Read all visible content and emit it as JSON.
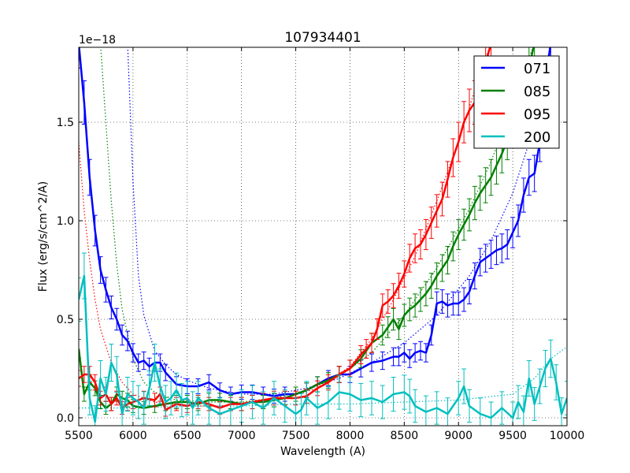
{
  "chart_data": {
    "type": "line",
    "title": "107934401",
    "xlabel": "Wavelength (A)",
    "ylabel": "Flux (erg/s/cm^2/A)",
    "offset_label": "1e−18",
    "xlim": [
      5500,
      10000
    ],
    "ylim": [
      -0.04,
      1.88
    ],
    "xticks": [
      5500,
      6000,
      6500,
      7000,
      7500,
      8000,
      8500,
      9000,
      9500,
      10000
    ],
    "xtick_labels": [
      "5500",
      "6000",
      "6500",
      "7000",
      "7500",
      "8000",
      "8500",
      "9000",
      "9500",
      "10000"
    ],
    "yticks": [
      0.0,
      0.5,
      1.0,
      1.5
    ],
    "ytick_labels": [
      "0.0",
      "0.5",
      "1.0",
      "1.5"
    ],
    "grid": true,
    "legend_position": "top-right",
    "series": [
      {
        "name": "071",
        "color": "#0000ff",
        "x": [
          5500,
          5550,
          5600,
          5650,
          5700,
          5750,
          5800,
          5850,
          5900,
          5950,
          6000,
          6050,
          6100,
          6150,
          6200,
          6250,
          6300,
          6400,
          6500,
          6600,
          6700,
          6800,
          6900,
          7000,
          7100,
          7200,
          7300,
          7400,
          7500,
          7600,
          7700,
          7800,
          7900,
          8000,
          8100,
          8200,
          8300,
          8400,
          8450,
          8500,
          8550,
          8600,
          8650,
          8700,
          8750,
          8800,
          8850,
          8900,
          8950,
          9000,
          9050,
          9100,
          9150,
          9200,
          9250,
          9300,
          9350,
          9400,
          9450,
          9500,
          9550,
          9600,
          9650,
          9700,
          9750,
          9800,
          9850
        ],
        "y": [
          1.9,
          1.6,
          1.22,
          0.95,
          0.75,
          0.65,
          0.56,
          0.5,
          0.42,
          0.39,
          0.33,
          0.28,
          0.29,
          0.26,
          0.28,
          0.28,
          0.23,
          0.17,
          0.16,
          0.16,
          0.18,
          0.14,
          0.12,
          0.13,
          0.13,
          0.12,
          0.11,
          0.12,
          0.12,
          0.14,
          0.17,
          0.2,
          0.22,
          0.22,
          0.25,
          0.28,
          0.29,
          0.31,
          0.31,
          0.33,
          0.3,
          0.33,
          0.34,
          0.33,
          0.42,
          0.58,
          0.59,
          0.57,
          0.58,
          0.58,
          0.6,
          0.64,
          0.72,
          0.79,
          0.81,
          0.83,
          0.85,
          0.86,
          0.88,
          0.94,
          1.0,
          1.13,
          1.22,
          1.24,
          1.4,
          1.7,
          1.9
        ]
      },
      {
        "name": "085",
        "color": "#008000",
        "x": [
          5500,
          5550,
          5600,
          5650,
          5700,
          5750,
          5800,
          5850,
          5900,
          5950,
          6000,
          6100,
          6200,
          6300,
          6400,
          6500,
          6600,
          6700,
          6800,
          6900,
          7000,
          7100,
          7200,
          7300,
          7400,
          7500,
          7600,
          7700,
          7800,
          7900,
          8000,
          8100,
          8200,
          8300,
          8350,
          8400,
          8450,
          8500,
          8550,
          8600,
          8650,
          8700,
          8750,
          8800,
          8850,
          8900,
          8950,
          9000,
          9050,
          9100,
          9150,
          9200,
          9250,
          9300,
          9350,
          9400,
          9450,
          9500,
          9550,
          9600,
          9650,
          9700
        ],
        "y": [
          0.35,
          0.12,
          0.18,
          0.15,
          0.08,
          0.05,
          0.07,
          0.12,
          0.1,
          0.09,
          0.06,
          0.05,
          0.06,
          0.07,
          0.08,
          0.08,
          0.07,
          0.09,
          0.09,
          0.08,
          0.07,
          0.08,
          0.08,
          0.09,
          0.1,
          0.12,
          0.14,
          0.17,
          0.19,
          0.22,
          0.25,
          0.3,
          0.38,
          0.42,
          0.46,
          0.5,
          0.45,
          0.52,
          0.55,
          0.57,
          0.6,
          0.63,
          0.67,
          0.72,
          0.76,
          0.8,
          0.87,
          0.93,
          0.98,
          1.03,
          1.09,
          1.14,
          1.18,
          1.22,
          1.28,
          1.34,
          1.41,
          1.5,
          1.58,
          1.66,
          1.78,
          1.9
        ]
      },
      {
        "name": "095",
        "color": "#ff0000",
        "x": [
          5500,
          5550,
          5600,
          5650,
          5700,
          5750,
          5800,
          5850,
          5900,
          5950,
          6000,
          6100,
          6200,
          6250,
          6300,
          6400,
          6500,
          6600,
          6700,
          6800,
          6900,
          7000,
          7100,
          7200,
          7300,
          7400,
          7500,
          7600,
          7700,
          7800,
          7900,
          8000,
          8100,
          8150,
          8200,
          8250,
          8300,
          8350,
          8400,
          8450,
          8500,
          8550,
          8600,
          8650,
          8700,
          8750,
          8800,
          8850,
          8900,
          8950,
          9000,
          9050,
          9100,
          9150,
          9200,
          9250,
          9300
        ],
        "y": [
          0.2,
          0.22,
          0.22,
          0.18,
          0.1,
          0.12,
          0.07,
          0.1,
          0.05,
          0.07,
          0.08,
          0.1,
          0.09,
          0.12,
          0.04,
          0.07,
          0.06,
          0.08,
          0.07,
          0.05,
          0.07,
          0.07,
          0.08,
          0.09,
          0.1,
          0.1,
          0.1,
          0.11,
          0.15,
          0.18,
          0.22,
          0.25,
          0.32,
          0.35,
          0.38,
          0.45,
          0.57,
          0.59,
          0.62,
          0.67,
          0.73,
          0.81,
          0.86,
          0.88,
          0.93,
          0.99,
          1.05,
          1.11,
          1.21,
          1.32,
          1.4,
          1.5,
          1.56,
          1.6,
          1.7,
          1.8,
          1.9
        ]
      },
      {
        "name": "200",
        "color": "#00bfbf",
        "x": [
          5500,
          5550,
          5600,
          5650,
          5700,
          5750,
          5800,
          5850,
          5900,
          5950,
          6000,
          6050,
          6100,
          6150,
          6200,
          6250,
          6300,
          6350,
          6400,
          6450,
          6500,
          6550,
          6600,
          6700,
          6800,
          6900,
          7000,
          7100,
          7200,
          7300,
          7400,
          7500,
          7550,
          7600,
          7700,
          7800,
          7900,
          8000,
          8100,
          8200,
          8300,
          8400,
          8500,
          8550,
          8600,
          8700,
          8800,
          8900,
          9000,
          9050,
          9100,
          9200,
          9300,
          9400,
          9500,
          9550,
          9600,
          9650,
          9700,
          9750,
          9800,
          9850,
          9900,
          9950,
          10000
        ],
        "y": [
          0.6,
          0.72,
          0.1,
          -0.02,
          0.2,
          0.12,
          0.28,
          0.22,
          0.02,
          0.12,
          0.1,
          0.08,
          0.05,
          0.15,
          0.28,
          0.16,
          0.08,
          0.1,
          0.14,
          0.09,
          0.1,
          0.05,
          0.1,
          0.05,
          0.02,
          0.04,
          0.06,
          0.08,
          0.05,
          0.1,
          0.06,
          0.02,
          0.04,
          0.1,
          0.05,
          0.08,
          0.13,
          0.12,
          0.09,
          0.1,
          0.08,
          0.12,
          0.13,
          0.11,
          0.06,
          0.03,
          0.05,
          0.02,
          0.1,
          0.16,
          0.06,
          0.02,
          0.0,
          0.05,
          0.0,
          0.08,
          0.03,
          0.2,
          0.07,
          0.16,
          0.25,
          0.3,
          0.18,
          0.02,
          0.1
        ]
      }
    ],
    "model_curves": [
      {
        "color": "#0000ff",
        "x": [
          5950,
          6000,
          6050,
          6100,
          6200,
          6300,
          6400,
          6500,
          6700,
          7000,
          7300,
          7600,
          7900,
          8200,
          8500,
          8800,
          9100,
          9300,
          9500,
          9700,
          9850
        ],
        "y": [
          1.9,
          1.2,
          0.72,
          0.52,
          0.34,
          0.27,
          0.22,
          0.19,
          0.15,
          0.12,
          0.12,
          0.15,
          0.2,
          0.28,
          0.38,
          0.52,
          0.72,
          0.9,
          1.14,
          1.48,
          1.9
        ]
      },
      {
        "color": "#008000",
        "x": [
          5700,
          5750,
          5800,
          5850,
          5900,
          6000,
          6100,
          6200,
          6400,
          6700,
          7000,
          7300,
          7600,
          7900,
          8200,
          8500,
          8800,
          9100,
          9300,
          9500,
          9700
        ],
        "y": [
          1.9,
          1.5,
          1.1,
          0.78,
          0.55,
          0.3,
          0.18,
          0.13,
          0.09,
          0.08,
          0.08,
          0.1,
          0.14,
          0.21,
          0.33,
          0.52,
          0.76,
          1.06,
          1.3,
          1.6,
          1.9
        ]
      },
      {
        "color": "#ff0000",
        "x": [
          5500,
          5550,
          5600,
          5650,
          5700,
          5800,
          5900,
          6000,
          6200,
          6500,
          6800,
          7100,
          7400,
          7700,
          8000,
          8200,
          8400,
          8600,
          8800,
          9000,
          9200,
          9300
        ],
        "y": [
          1.4,
          1.05,
          0.8,
          0.6,
          0.45,
          0.28,
          0.18,
          0.12,
          0.08,
          0.06,
          0.06,
          0.08,
          0.1,
          0.15,
          0.26,
          0.4,
          0.6,
          0.82,
          1.1,
          1.4,
          1.75,
          1.9
        ]
      },
      {
        "color": "#00bfbf",
        "x": [
          5500,
          6000,
          6500,
          7000,
          7500,
          8000,
          8500,
          9000,
          9500,
          9700,
          9850,
          10000
        ],
        "y": [
          0.05,
          0.05,
          0.06,
          0.06,
          0.07,
          0.07,
          0.08,
          0.09,
          0.12,
          0.2,
          0.3,
          0.36
        ]
      }
    ]
  }
}
